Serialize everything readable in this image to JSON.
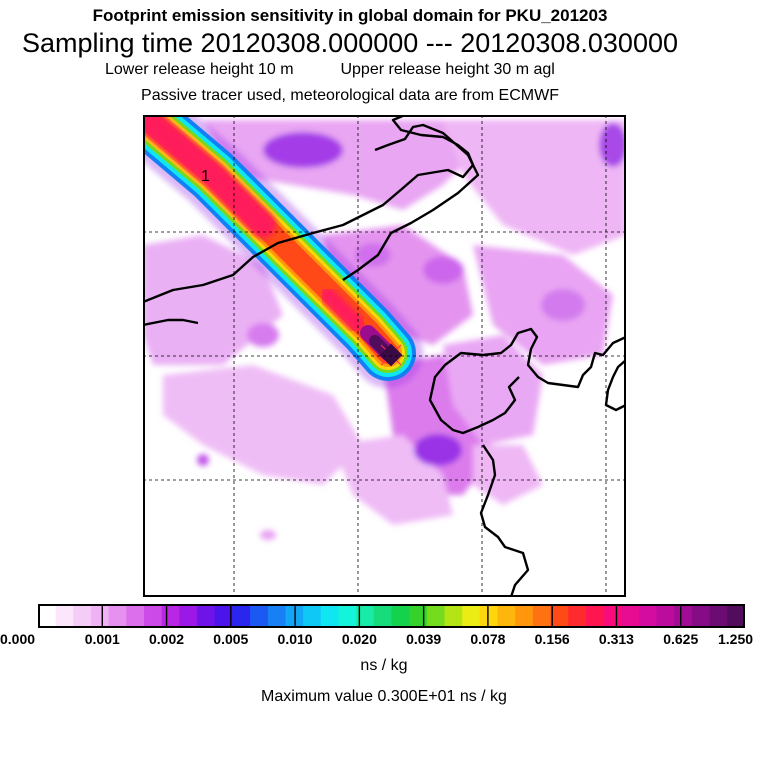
{
  "header": {
    "line1": "Footprint emission sensitivity in global domain for PKU_201203",
    "line2": "Sampling time   20120308.000000 --- 20120308.030000",
    "lower_release": "Lower release height   10 m",
    "upper_release": "Upper release height   30 m    agl",
    "line4": "Passive tracer used, meteorological data are from ECMWF"
  },
  "map": {
    "marker_label": "1",
    "colors": {
      "coast": "#000000",
      "grid": "#000000"
    }
  },
  "colorbar": {
    "ticks": [
      "0.000",
      "0.001",
      "0.002",
      "0.005",
      "0.010",
      "0.020",
      "0.039",
      "0.078",
      "0.156",
      "0.313",
      "0.625",
      "1.250"
    ],
    "colors": [
      "#ffffff",
      "#fbe6fb",
      "#f5ccf7",
      "#efb3f5",
      "#e690ef",
      "#dc6fec",
      "#cc4ae8",
      "#b926e4",
      "#9b18e6",
      "#6e14e8",
      "#4a14ea",
      "#2a26f0",
      "#1c58f2",
      "#1680f4",
      "#12a6f6",
      "#10c8f6",
      "#10e6f2",
      "#14f4da",
      "#18eaa8",
      "#16dc7c",
      "#14d24c",
      "#34d22a",
      "#74dc1c",
      "#b4e414",
      "#eaec14",
      "#ffd60c",
      "#ffb60c",
      "#ff960c",
      "#ff7212",
      "#ff4a18",
      "#ff2a2e",
      "#ff1650",
      "#f80c7c",
      "#e80c92",
      "#d40ca0",
      "#bc0c9e",
      "#a00c94",
      "#860c86",
      "#6c0c72",
      "#520c5c"
    ],
    "units": "ns / kg"
  },
  "footer": {
    "max_value": "Maximum value  0.300E+01 ns / kg"
  }
}
